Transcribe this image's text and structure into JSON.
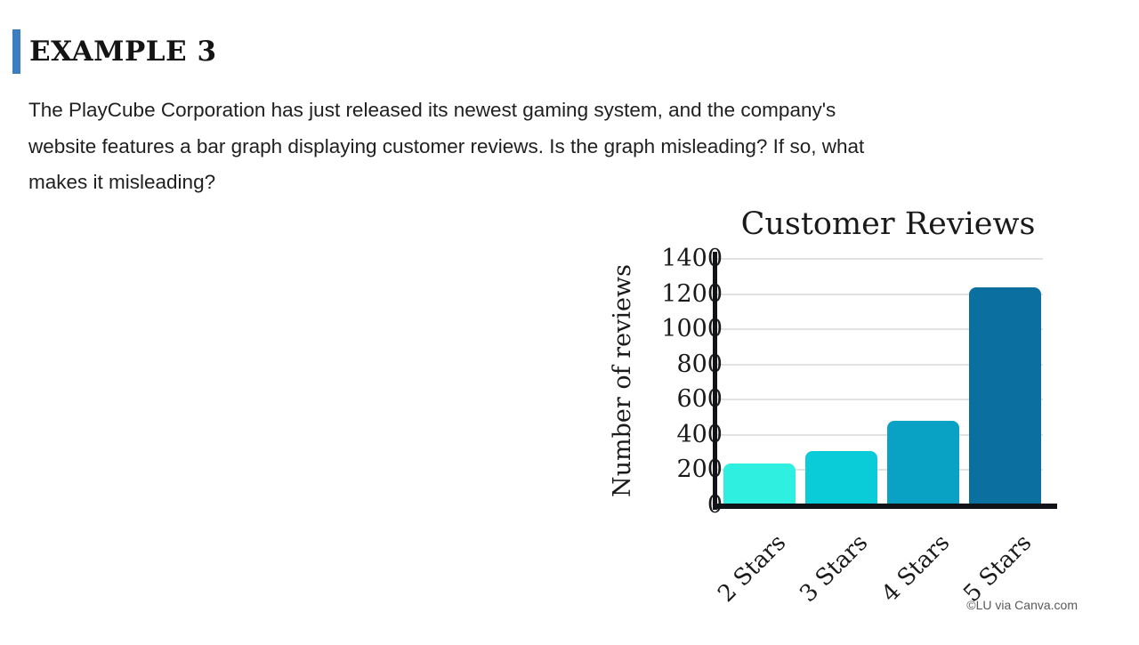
{
  "header": {
    "title": "EXAMPLE 3",
    "accent_color": "#3c7fc0"
  },
  "paragraph": {
    "lines": [
      "The PlayCube Corporation has just released its newest gaming system, and the company's",
      "website features a bar graph displaying customer reviews. Is the graph misleading? If so, what",
      "makes it misleading?"
    ]
  },
  "chart_data": {
    "type": "bar",
    "title": "Customer Reviews",
    "xlabel": "",
    "ylabel": "Number of reviews",
    "categories": [
      "2 Stars",
      "3 Stars",
      "4 Stars",
      "5 Stars"
    ],
    "values": [
      240,
      310,
      480,
      1240
    ],
    "bar_colors": [
      "#2fefe0",
      "#0acbd8",
      "#0aa2c4",
      "#0b70a0"
    ],
    "ylim": [
      0,
      1400
    ],
    "ytick_step": 200,
    "grid": true,
    "gridline_color": "#e2e2e2",
    "axis_color": "#101418",
    "legend_position": "none"
  },
  "caption": {
    "text": "©LU via Canva.com"
  }
}
